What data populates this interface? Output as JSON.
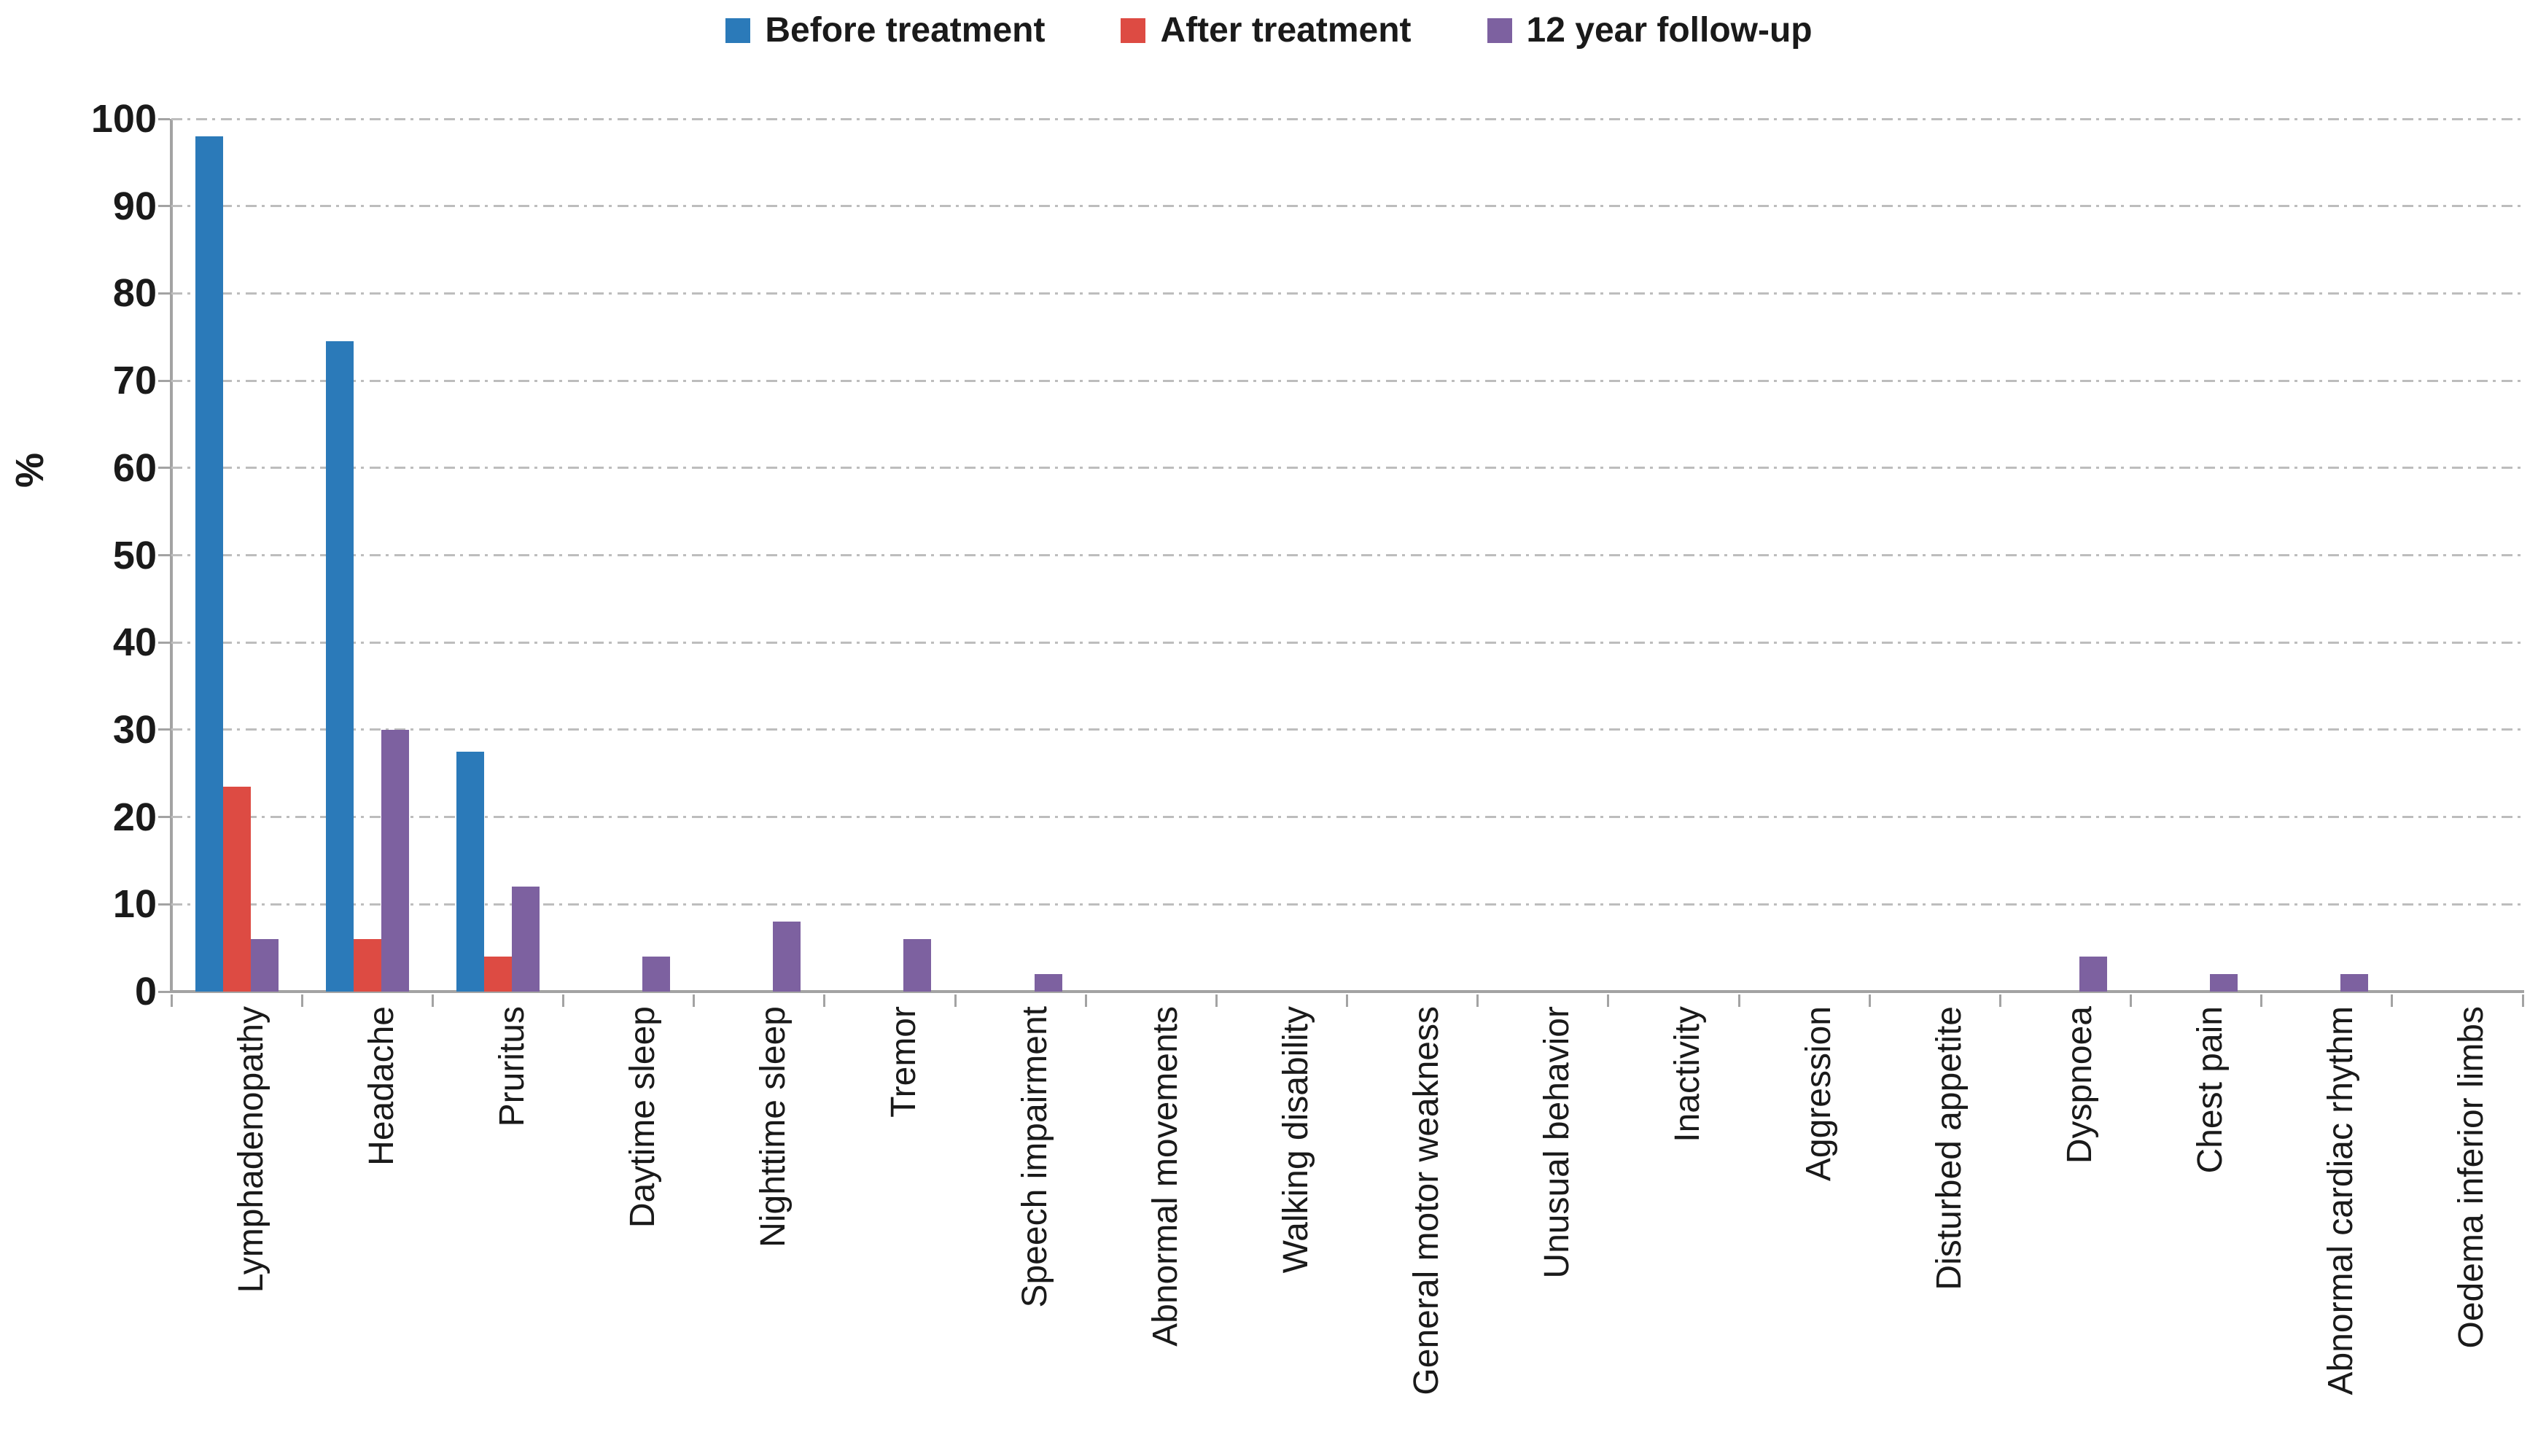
{
  "chart_data": {
    "type": "bar",
    "title": "",
    "xlabel": "",
    "ylabel": "%",
    "ylim": [
      0,
      100
    ],
    "yticks": [
      0,
      10,
      20,
      30,
      40,
      50,
      60,
      70,
      80,
      90,
      100
    ],
    "grid": "horizontal dash-dot gridlines at every 10",
    "legend_position": "top-center",
    "bar_layout": "clustered, 3 bars per category",
    "categories": [
      "Lymphadenopathy",
      "Headache",
      "Pruritus",
      "Daytime sleep",
      "Nighttime sleep",
      "Tremor",
      "Speech impairment",
      "Abnormal movements",
      "Walking disability",
      "General motor weakness",
      "Unusual behavior",
      "Inactivity",
      "Aggression",
      "Disturbed appetite",
      "Dyspnoea",
      "Chest pain",
      "Abnormal cardiac rhythm",
      "Oedema inferior limbs"
    ],
    "series": [
      {
        "name": "Before treatment",
        "color": "#2B7AB9",
        "values": [
          98,
          74.5,
          27.5,
          0,
          0,
          0,
          0,
          0,
          0,
          0,
          0,
          0,
          0,
          0,
          0,
          0,
          0,
          0
        ]
      },
      {
        "name": "After treatment",
        "color": "#DD4B43",
        "values": [
          23.5,
          6,
          4,
          0,
          0,
          0,
          0,
          0,
          0,
          0,
          0,
          0,
          0,
          0,
          0,
          0,
          0,
          0
        ]
      },
      {
        "name": "12 year follow-up",
        "color": "#7D61A0",
        "values": [
          6,
          30,
          12,
          4,
          8,
          6,
          2,
          0,
          0,
          0,
          0,
          0,
          0,
          0,
          4,
          2,
          2,
          0
        ]
      }
    ]
  },
  "colors": {
    "axis": "#a3a3a3",
    "gridline": "#bdbdbd",
    "text": "#1a1a1a",
    "background": "#ffffff"
  }
}
